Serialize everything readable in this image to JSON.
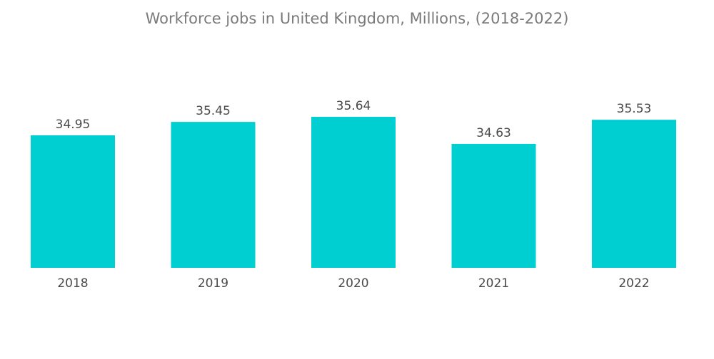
{
  "chart_data": {
    "type": "bar",
    "title": "Workforce jobs in United Kingdom, Millions, (2018-2022)",
    "categories": [
      "2018",
      "2019",
      "2020",
      "2021",
      "2022"
    ],
    "values": [
      34.95,
      35.45,
      35.64,
      34.63,
      35.53
    ],
    "value_labels": [
      "34.95",
      "35.45",
      "35.64",
      "34.63",
      "35.53"
    ],
    "xlabel": "",
    "ylabel": "",
    "ylim": [
      0,
      35.64
    ],
    "bar_color": "#00cfd1",
    "grid": false,
    "legend": "none"
  }
}
